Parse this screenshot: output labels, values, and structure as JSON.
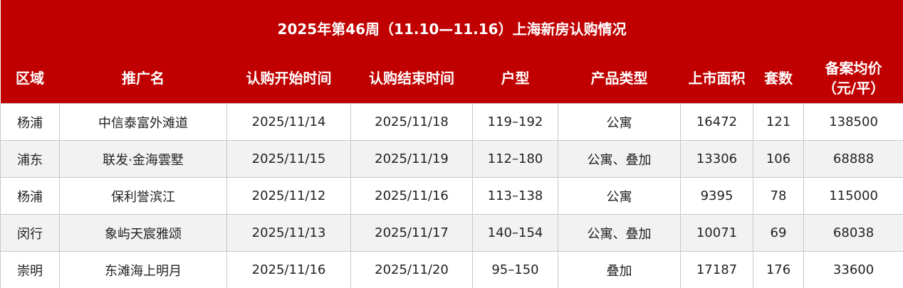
{
  "title": "2025年第46周（11.10—11.16）上海新房认购情况",
  "columns": [
    "区域",
    "推广名",
    "认购开始时间",
    "认购结束时间",
    "户型",
    "产品类型",
    "上市面积",
    "套数",
    "备案均价",
    "（元/平）"
  ],
  "rows": [
    [
      "杨浦",
      "中信泰富外滩道",
      "2025/11/14",
      "2025/11/18",
      "119–192",
      "公寓",
      "16472",
      "121",
      "138500"
    ],
    [
      "浦东",
      "联发·金海雲墅",
      "2025/11/15",
      "2025/11/19",
      "112–180",
      "公寓、叠加",
      "13306",
      "106",
      "68888"
    ],
    [
      "杨浦",
      "保利誉滨江",
      "2025/11/12",
      "2025/11/16",
      "113–138",
      "公寓",
      "9395",
      "78",
      "115000"
    ],
    [
      "闵行",
      "象屿天宸雅颂",
      "2025/11/13",
      "2025/11/17",
      "140–154",
      "公寓、叠加",
      "10071",
      "69",
      "68038"
    ],
    [
      "崇明",
      "东滩海上明月",
      "2025/11/16",
      "2025/11/20",
      "95–150",
      "叠加",
      "17187",
      "176",
      "33600"
    ]
  ],
  "colors": {
    "header": "#c00000",
    "alt_row": "#f2f2f2"
  }
}
